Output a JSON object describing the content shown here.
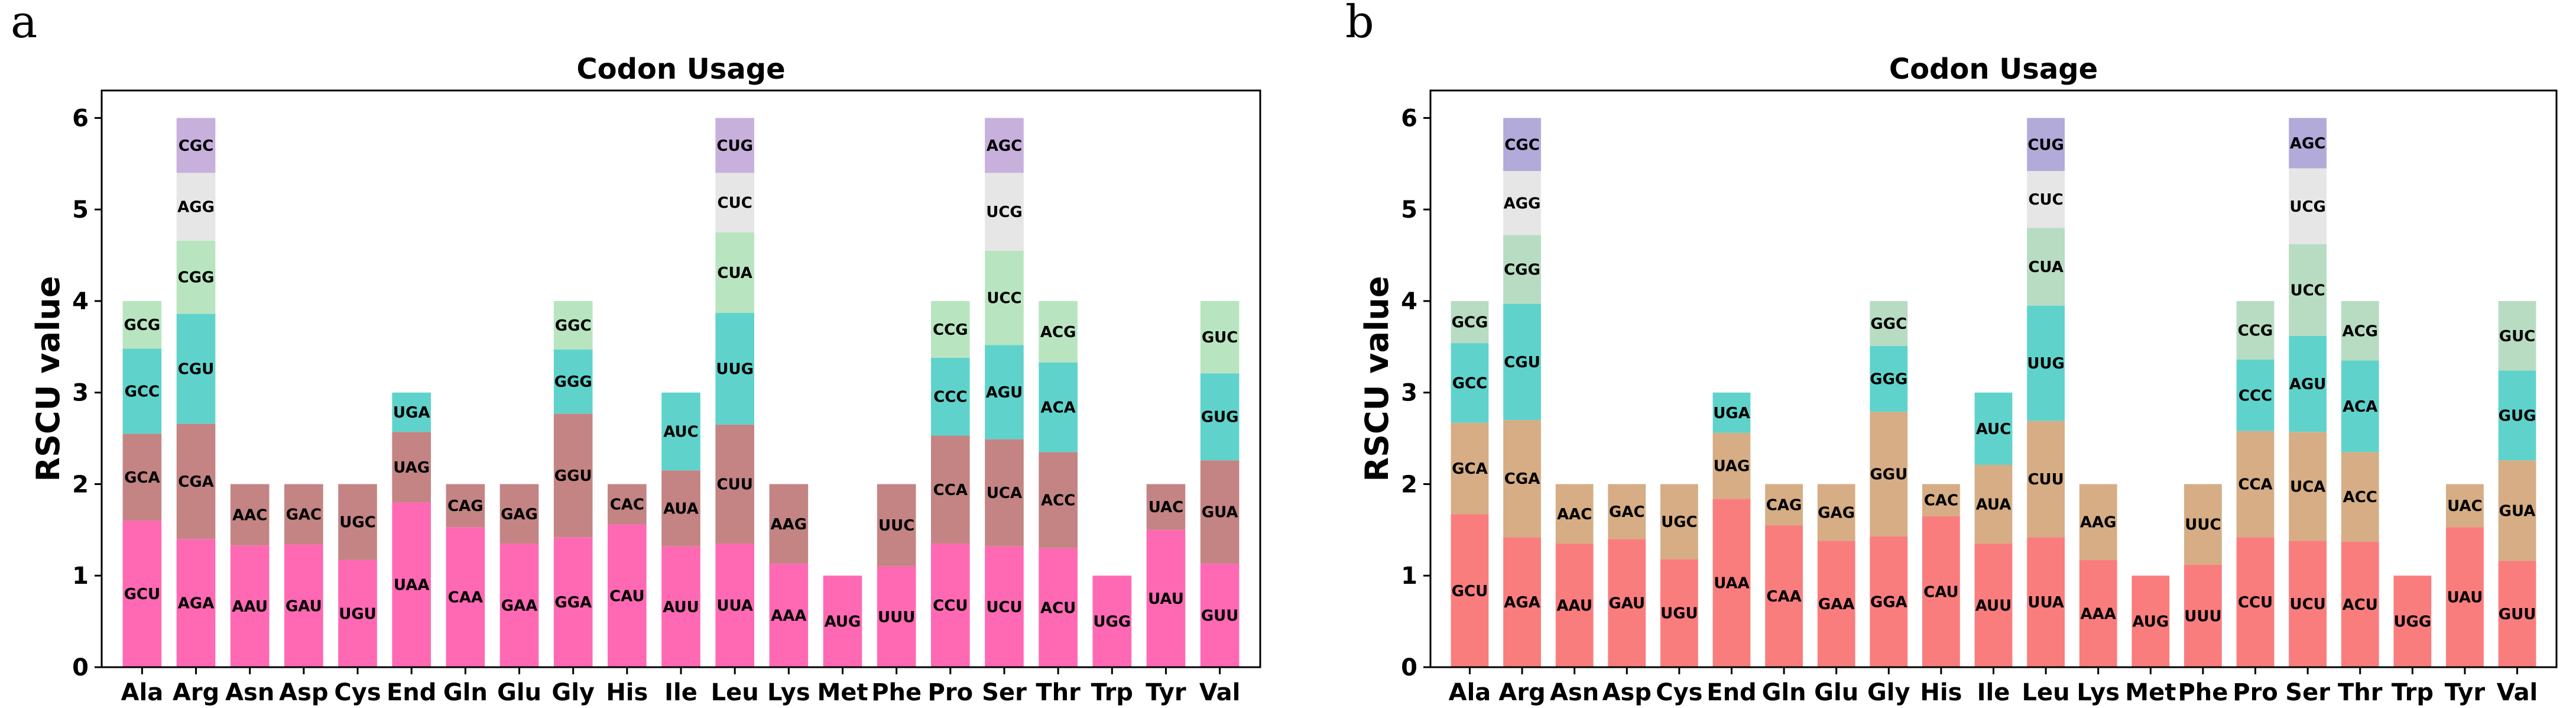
{
  "panels": [
    "a",
    "b"
  ],
  "chart_data": [
    {
      "type": "bar",
      "stacked": true,
      "title": "Codon Usage",
      "xlabel": "",
      "ylabel": "RSCU value",
      "ylim": [
        0,
        6.3
      ],
      "yticks": [
        0,
        1,
        2,
        3,
        4,
        5,
        6
      ],
      "grid": false,
      "legend": "none",
      "layer_colors": [
        "#ff69b4",
        "#c48484",
        "#5fd3cb",
        "#b8e5c0",
        "#e6e6e6",
        "#c8b0dc"
      ],
      "categories": [
        "Ala",
        "Arg",
        "Asn",
        "Asp",
        "Cys",
        "End",
        "Gln",
        "Glu",
        "Gly",
        "His",
        "Ile",
        "Leu",
        "Lys",
        "Met",
        "Phe",
        "Pro",
        "Ser",
        "Thr",
        "Trp",
        "Tyr",
        "Val"
      ],
      "stacks": [
        [
          [
            "GCU",
            1.6
          ],
          [
            "GCA",
            0.95
          ],
          [
            "GCC",
            0.93
          ],
          [
            "GCG",
            0.52
          ]
        ],
        [
          [
            "AGA",
            1.4
          ],
          [
            "CGA",
            1.26
          ],
          [
            "CGU",
            1.2
          ],
          [
            "CGG",
            0.8
          ],
          [
            "AGG",
            0.74
          ],
          [
            "CGC",
            0.6
          ]
        ],
        [
          [
            "AAU",
            1.33
          ],
          [
            "AAC",
            0.67
          ]
        ],
        [
          [
            "GAU",
            1.34
          ],
          [
            "GAC",
            0.66
          ]
        ],
        [
          [
            "UGU",
            1.17
          ],
          [
            "UGC",
            0.83
          ]
        ],
        [
          [
            "UAA",
            1.8
          ],
          [
            "UAG",
            0.77
          ],
          [
            "UGA",
            0.43
          ]
        ],
        [
          [
            "CAA",
            1.53
          ],
          [
            "CAG",
            0.47
          ]
        ],
        [
          [
            "GAA",
            1.35
          ],
          [
            "GAG",
            0.65
          ]
        ],
        [
          [
            "GGA",
            1.42
          ],
          [
            "GGU",
            1.35
          ],
          [
            "GGG",
            0.7
          ],
          [
            "GGC",
            0.53
          ]
        ],
        [
          [
            "CAU",
            1.56
          ],
          [
            "CAC",
            0.44
          ]
        ],
        [
          [
            "AUU",
            1.32
          ],
          [
            "AUA",
            0.83
          ],
          [
            "AUC",
            0.85
          ]
        ],
        [
          [
            "UUA",
            1.35
          ],
          [
            "CUU",
            1.3
          ],
          [
            "UUG",
            1.22
          ],
          [
            "CUA",
            0.88
          ],
          [
            "CUC",
            0.65
          ],
          [
            "CUG",
            0.6
          ]
        ],
        [
          [
            "AAA",
            1.13
          ],
          [
            "AAG",
            0.87
          ]
        ],
        [
          [
            "AUG",
            1.0
          ]
        ],
        [
          [
            "UUU",
            1.1
          ],
          [
            "UUC",
            0.9
          ]
        ],
        [
          [
            "CCU",
            1.35
          ],
          [
            "CCA",
            1.18
          ],
          [
            "CCC",
            0.85
          ],
          [
            "CCG",
            0.62
          ]
        ],
        [
          [
            "UCU",
            1.32
          ],
          [
            "UCA",
            1.17
          ],
          [
            "AGU",
            1.03
          ],
          [
            "UCC",
            1.03
          ],
          [
            "UCG",
            0.85
          ],
          [
            "AGC",
            0.6
          ]
        ],
        [
          [
            "ACU",
            1.3
          ],
          [
            "ACC",
            1.05
          ],
          [
            "ACA",
            0.98
          ],
          [
            "ACG",
            0.67
          ]
        ],
        [
          [
            "UGG",
            1.0
          ]
        ],
        [
          [
            "UAU",
            1.5
          ],
          [
            "UAC",
            0.5
          ]
        ],
        [
          [
            "GUU",
            1.13
          ],
          [
            "GUA",
            1.13
          ],
          [
            "GUG",
            0.95
          ],
          [
            "GUC",
            0.79
          ]
        ]
      ]
    },
    {
      "type": "bar",
      "stacked": true,
      "title": "Codon Usage",
      "xlabel": "",
      "ylabel": "RSCU value",
      "ylim": [
        0,
        6.3
      ],
      "yticks": [
        0,
        1,
        2,
        3,
        4,
        5,
        6
      ],
      "grid": false,
      "legend": "none",
      "layer_colors": [
        "#fa7d7d",
        "#d6ad84",
        "#5fd3cb",
        "#b7dcc2",
        "#e6e6e6",
        "#b2aad9"
      ],
      "categories": [
        "Ala",
        "Arg",
        "Asn",
        "Asp",
        "Cys",
        "End",
        "Gln",
        "Glu",
        "Gly",
        "His",
        "Ile",
        "Leu",
        "Lys",
        "Met",
        "Phe",
        "Pro",
        "Ser",
        "Thr",
        "Trp",
        "Tyr",
        "Val"
      ],
      "stacks": [
        [
          [
            "GCU",
            1.67
          ],
          [
            "GCA",
            1.0
          ],
          [
            "GCC",
            0.87
          ],
          [
            "GCG",
            0.46
          ]
        ],
        [
          [
            "AGA",
            1.42
          ],
          [
            "CGA",
            1.28
          ],
          [
            "CGU",
            1.27
          ],
          [
            "CGG",
            0.75
          ],
          [
            "AGG",
            0.7
          ],
          [
            "CGC",
            0.58
          ]
        ],
        [
          [
            "AAU",
            1.35
          ],
          [
            "AAC",
            0.65
          ]
        ],
        [
          [
            "GAU",
            1.4
          ],
          [
            "GAC",
            0.6
          ]
        ],
        [
          [
            "UGU",
            1.18
          ],
          [
            "UGC",
            0.82
          ]
        ],
        [
          [
            "UAA",
            1.84
          ],
          [
            "UAG",
            0.72
          ],
          [
            "UGA",
            0.44
          ]
        ],
        [
          [
            "CAA",
            1.55
          ],
          [
            "CAG",
            0.45
          ]
        ],
        [
          [
            "GAA",
            1.38
          ],
          [
            "GAG",
            0.62
          ]
        ],
        [
          [
            "GGA",
            1.43
          ],
          [
            "GGU",
            1.36
          ],
          [
            "GGG",
            0.72
          ],
          [
            "GGC",
            0.49
          ]
        ],
        [
          [
            "CAU",
            1.65
          ],
          [
            "CAC",
            0.35
          ]
        ],
        [
          [
            "AUU",
            1.35
          ],
          [
            "AUA",
            0.86
          ],
          [
            "AUC",
            0.79
          ]
        ],
        [
          [
            "UUA",
            1.42
          ],
          [
            "CUU",
            1.27
          ],
          [
            "UUG",
            1.26
          ],
          [
            "CUA",
            0.85
          ],
          [
            "CUC",
            0.62
          ],
          [
            "CUG",
            0.58
          ]
        ],
        [
          [
            "AAA",
            1.17
          ],
          [
            "AAG",
            0.83
          ]
        ],
        [
          [
            "AUG",
            1.0
          ]
        ],
        [
          [
            "UUU",
            1.12
          ],
          [
            "UUC",
            0.88
          ]
        ],
        [
          [
            "CCU",
            1.42
          ],
          [
            "CCA",
            1.16
          ],
          [
            "CCC",
            0.78
          ],
          [
            "CCG",
            0.64
          ]
        ],
        [
          [
            "UCU",
            1.38
          ],
          [
            "UCA",
            1.19
          ],
          [
            "AGU",
            1.05
          ],
          [
            "UCC",
            1.0
          ],
          [
            "UCG",
            0.83
          ],
          [
            "AGC",
            0.55
          ]
        ],
        [
          [
            "ACU",
            1.37
          ],
          [
            "ACC",
            0.98
          ],
          [
            "ACA",
            1.0
          ],
          [
            "ACG",
            0.65
          ]
        ],
        [
          [
            "UGG",
            1.0
          ]
        ],
        [
          [
            "UAU",
            1.53
          ],
          [
            "UAC",
            0.47
          ]
        ],
        [
          [
            "GUU",
            1.16
          ],
          [
            "GUA",
            1.1
          ],
          [
            "GUG",
            0.98
          ],
          [
            "GUC",
            0.76
          ]
        ]
      ]
    }
  ]
}
